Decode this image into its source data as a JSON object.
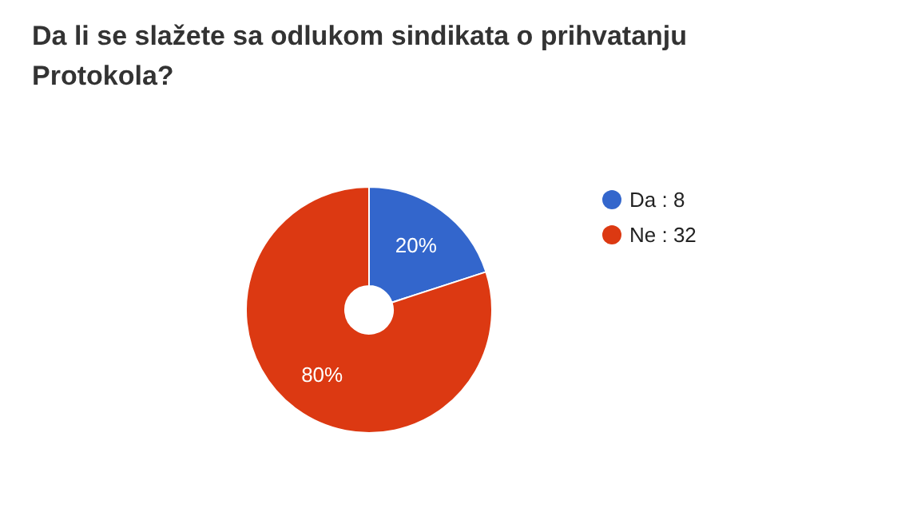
{
  "chart_data": {
    "type": "donut",
    "title": "Da li se slažete sa odlukom sindikata o prihvatanju Protokola?",
    "categories": [
      "Da : 8",
      "Ne : 32"
    ],
    "values": [
      20,
      80
    ],
    "colors": [
      "#3366cc",
      "#dc3912"
    ],
    "value_labels": [
      "20%",
      "80%"
    ],
    "legend": "right"
  }
}
